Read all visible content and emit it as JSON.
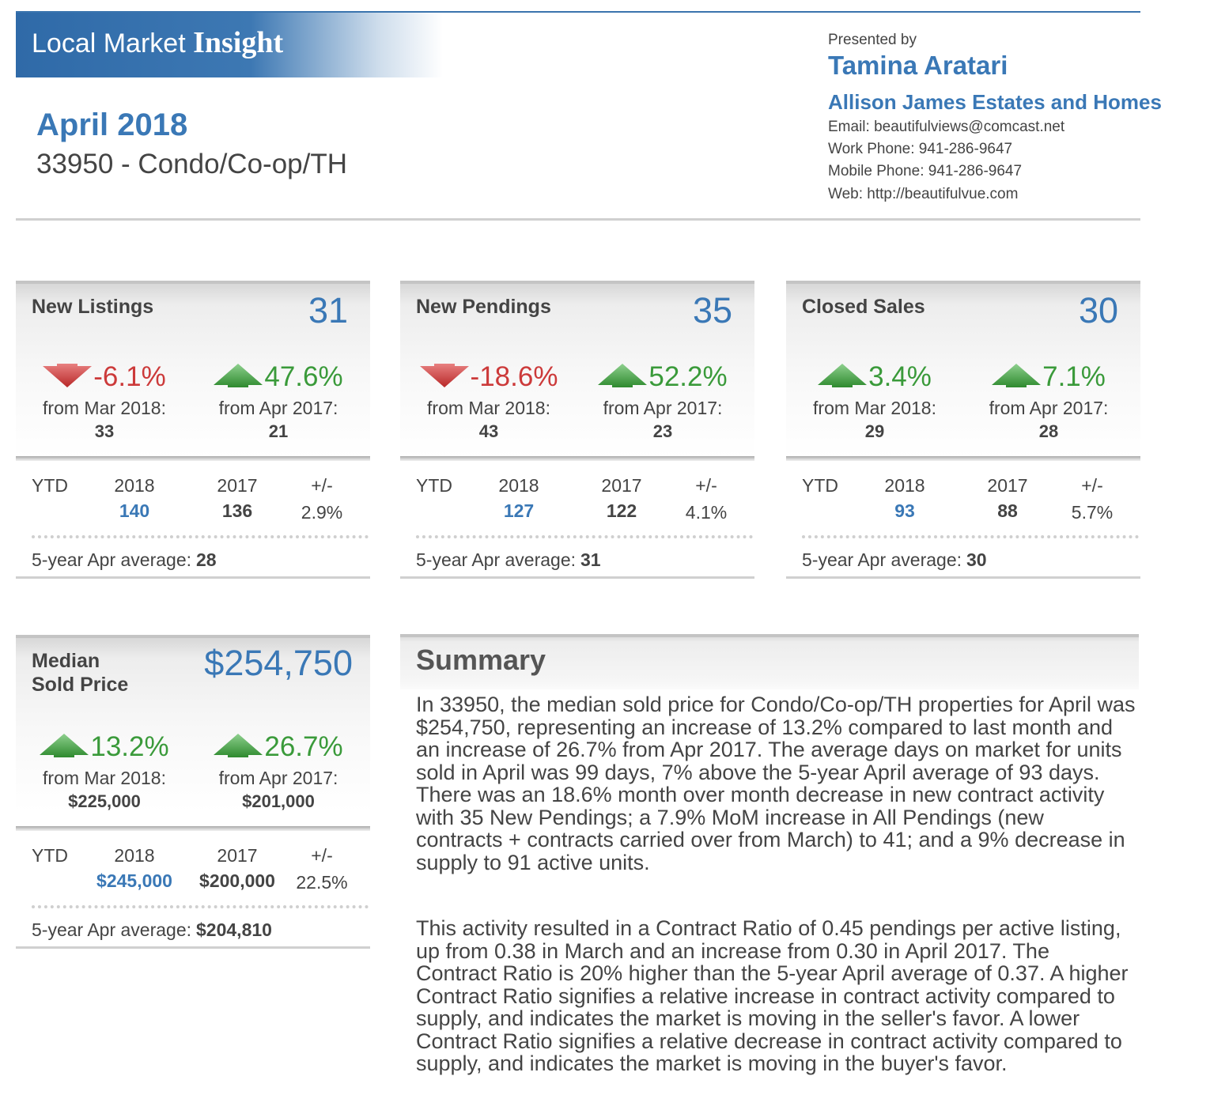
{
  "header": {
    "brand_light": "Local Market ",
    "brand_bold": "Insight",
    "month": "April 2018",
    "subtitle": "33950 - Condo/Co-op/TH"
  },
  "agent": {
    "presented_by": "Presented by",
    "name": "Tamina Aratari",
    "brokerage": "Allison James Estates and Homes",
    "email": "Email: beautifulviews@comcast.net",
    "work_phone": "Work Phone: 941-286-9647",
    "mobile_phone": "Mobile Phone: 941-286-9647",
    "web": "Web: http://beautifulvue.com"
  },
  "colors": {
    "accent_blue": "#3a78b6",
    "down_red": "#cc3a3a",
    "up_green": "#3a9a3a"
  },
  "cards": [
    {
      "title": "New Listings",
      "value": "31",
      "mom_direction": "down-arrow-icon",
      "mom_pct": "-6.1%",
      "mom_label": "from Mar 2018:",
      "mom_value": "33",
      "yoy_direction": "up-arrow-icon",
      "yoy_pct": "47.6%",
      "yoy_label": "from Apr 2017:",
      "yoy_value": "21",
      "ytd_label": "YTD",
      "ytd_year_cur": "2018",
      "ytd_year_prev": "2017",
      "ytd_change_label": "+/-",
      "ytd_cur": "140",
      "ytd_prev": "136",
      "ytd_change": "2.9%",
      "avg_label": "5-year Apr average:",
      "avg_value": "28"
    },
    {
      "title": "New Pendings",
      "value": "35",
      "mom_direction": "down-arrow-icon",
      "mom_pct": "-18.6%",
      "mom_label": "from Mar 2018:",
      "mom_value": "43",
      "yoy_direction": "up-arrow-icon",
      "yoy_pct": "52.2%",
      "yoy_label": "from Apr 2017:",
      "yoy_value": "23",
      "ytd_label": "YTD",
      "ytd_year_cur": "2018",
      "ytd_year_prev": "2017",
      "ytd_change_label": "+/-",
      "ytd_cur": "127",
      "ytd_prev": "122",
      "ytd_change": "4.1%",
      "avg_label": "5-year Apr average:",
      "avg_value": "31"
    },
    {
      "title": "Closed Sales",
      "value": "30",
      "mom_direction": "up-arrow-icon",
      "mom_pct": "3.4%",
      "mom_label": "from Mar 2018:",
      "mom_value": "29",
      "yoy_direction": "up-arrow-icon",
      "yoy_pct": "7.1%",
      "yoy_label": "from Apr 2017:",
      "yoy_value": "28",
      "ytd_label": "YTD",
      "ytd_year_cur": "2018",
      "ytd_year_prev": "2017",
      "ytd_change_label": "+/-",
      "ytd_cur": "93",
      "ytd_prev": "88",
      "ytd_change": "5.7%",
      "avg_label": "5-year Apr average:",
      "avg_value": "30"
    },
    {
      "title_line1": "Median",
      "title_line2": "Sold Price",
      "value": "$254,750",
      "mom_direction": "up-arrow-icon",
      "mom_pct": "13.2%",
      "mom_label": "from Mar 2018:",
      "mom_value": "$225,000",
      "yoy_direction": "up-arrow-icon",
      "yoy_pct": "26.7%",
      "yoy_label": "from Apr 2017:",
      "yoy_value": "$201,000",
      "ytd_label": "YTD",
      "ytd_year_cur": "2018",
      "ytd_year_prev": "2017",
      "ytd_change_label": "+/-",
      "ytd_cur": "$245,000",
      "ytd_prev": "$200,000",
      "ytd_change": "22.5%",
      "avg_label": "5-year Apr average:",
      "avg_value": "$204,810"
    }
  ],
  "summary": {
    "title": "Summary",
    "para1": "In 33950, the median sold price for Condo/Co-op/TH properties for April was $254,750, representing an increase of 13.2% compared to last month and an increase of 26.7% from Apr 2017. The average days on market for units sold in April was 99 days, 7% above the 5-year April average of 93 days. There was an 18.6% month over month decrease in new contract activity with 35 New Pendings; a 7.9% MoM increase in All Pendings (new contracts + contracts carried over from March) to 41; and a 9% decrease in supply to 91 active units.",
    "para2": "This activity resulted in a Contract Ratio of 0.45 pendings per active listing, up from 0.38 in March and an increase from 0.30 in April 2017. The Contract Ratio is 20% higher than the 5-year April average of 0.37. A higher Contract Ratio signifies a relative increase in contract activity compared to supply, and indicates the market is moving in the seller's favor. A lower Contract Ratio signifies a relative decrease in contract activity compared to supply, and indicates the market is moving in the buyer's favor."
  }
}
